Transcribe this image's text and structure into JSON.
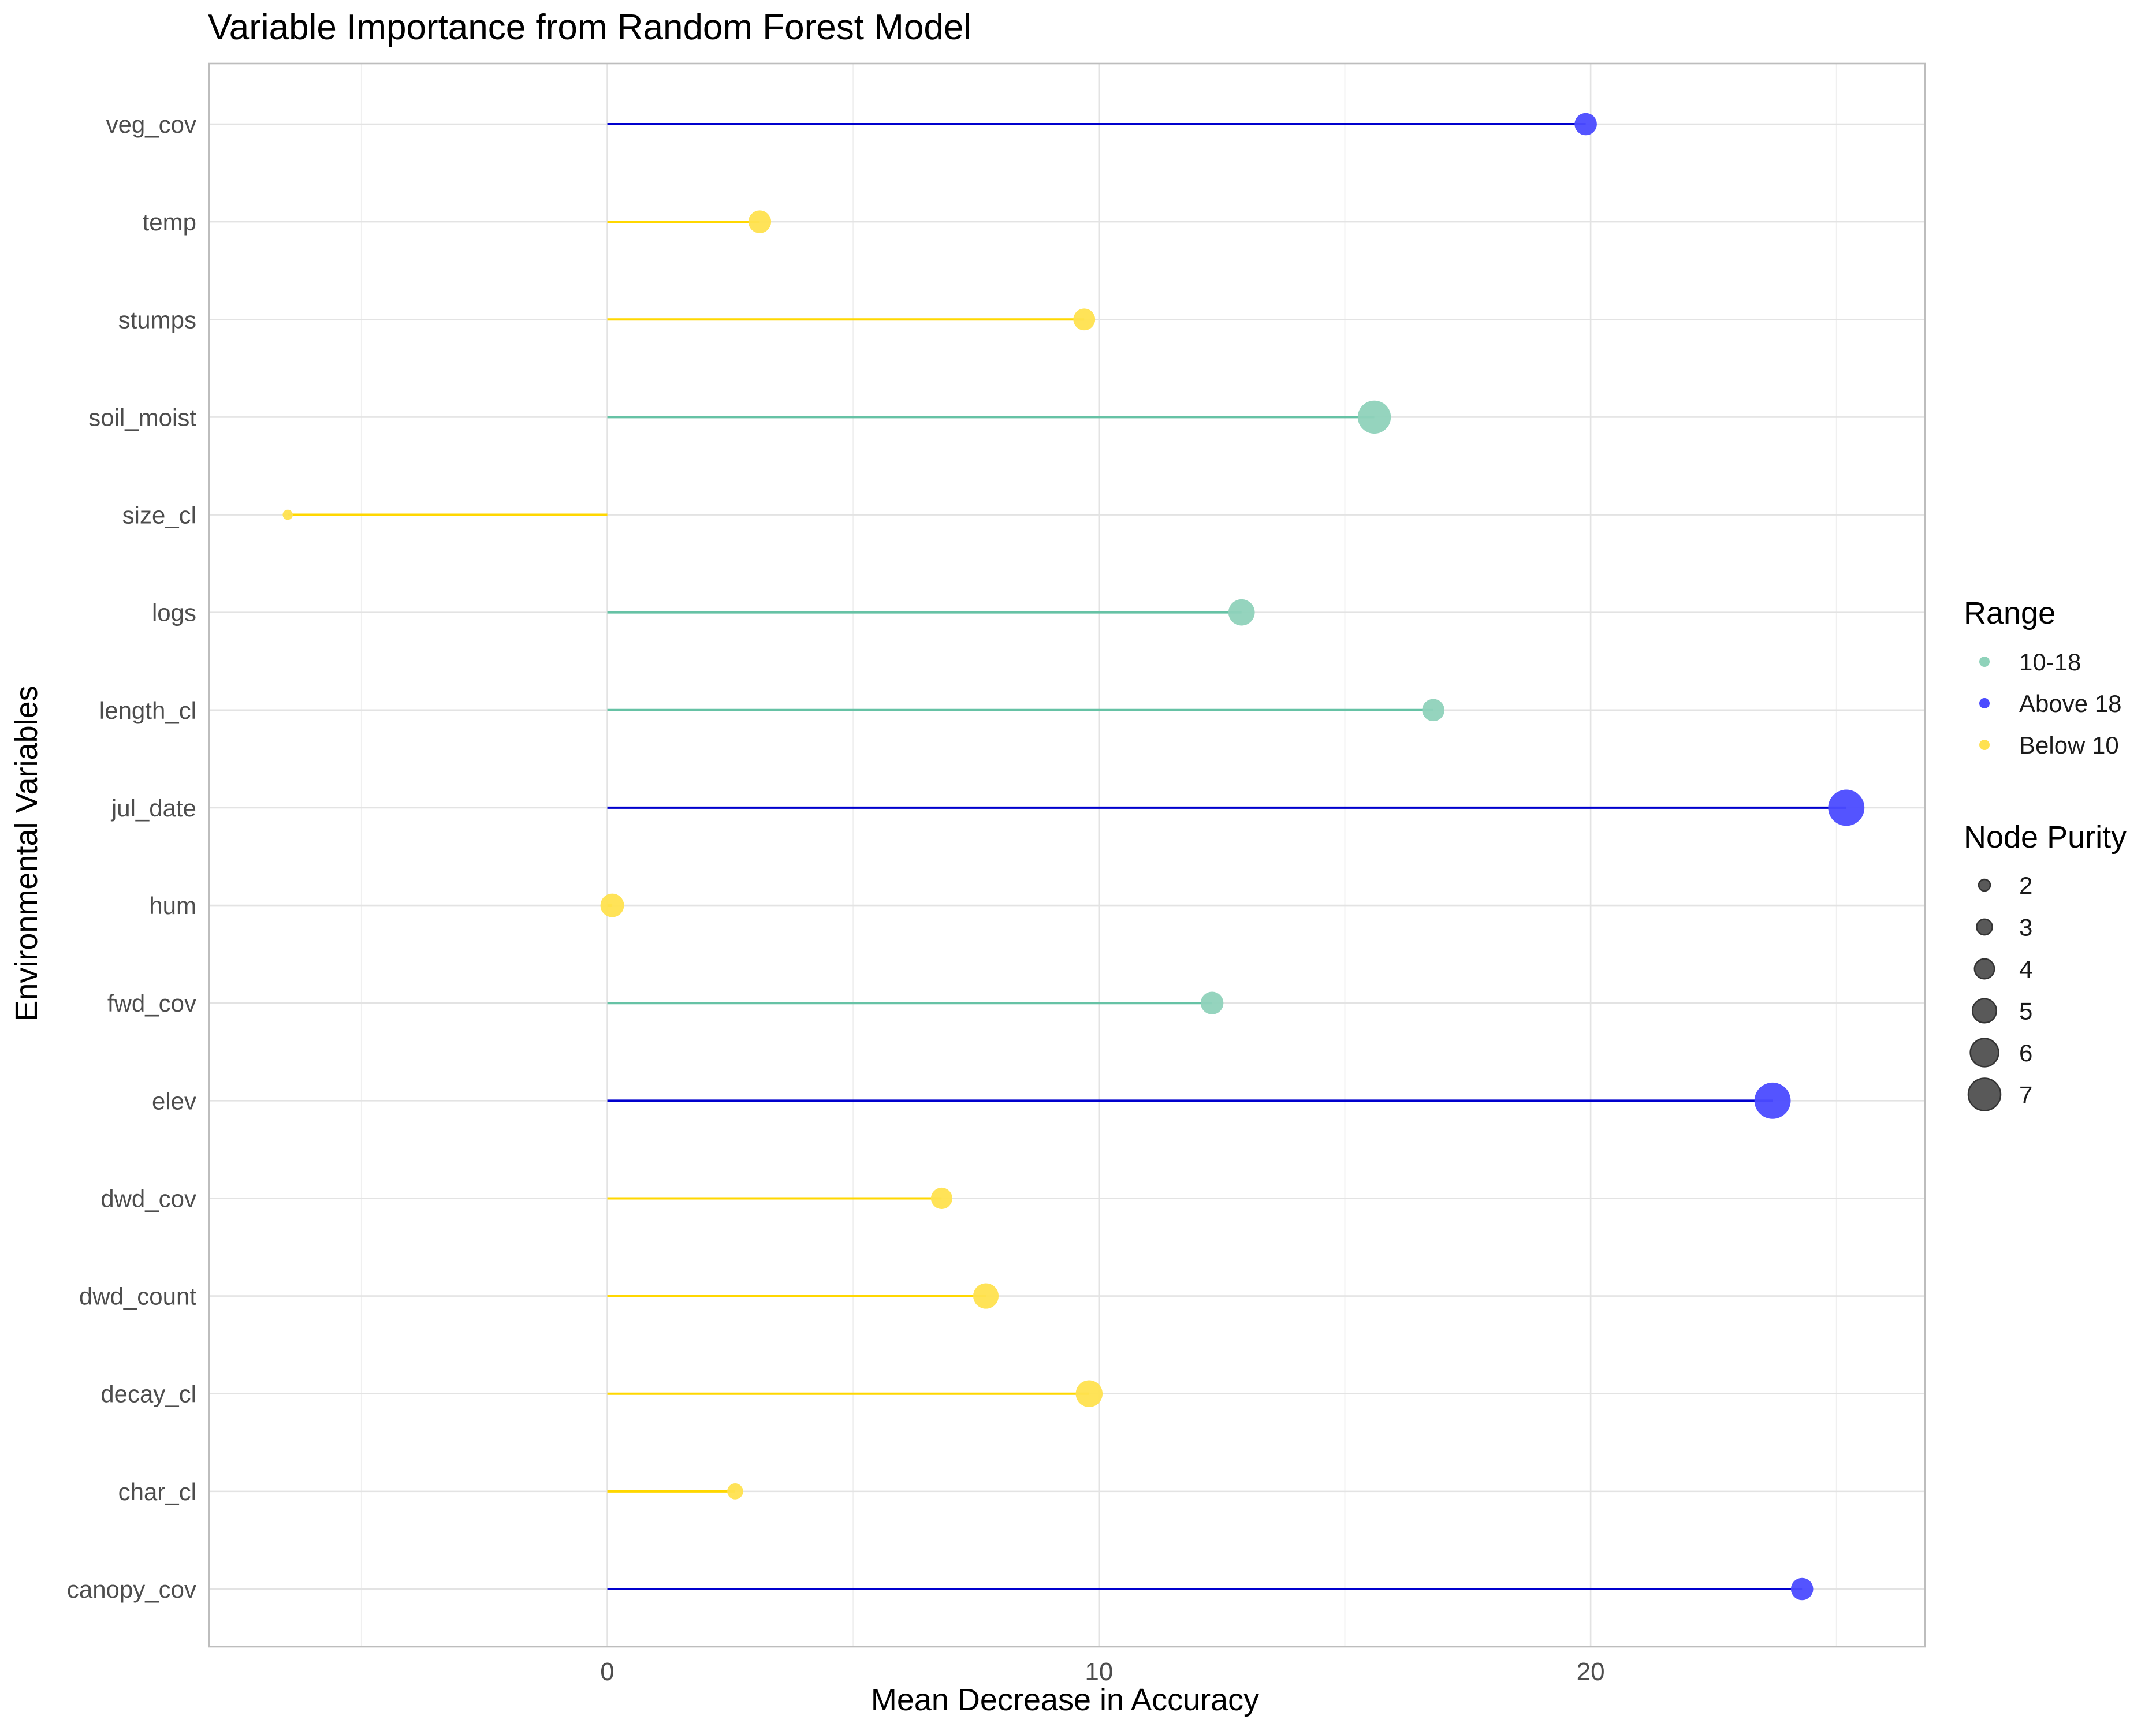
{
  "chart_data": {
    "type": "lollipop",
    "title": "Variable Importance from Random Forest Model",
    "xlabel": "Mean Decrease in Accuracy",
    "ylabel": "Environmental Variables",
    "xlim": [
      -8.1,
      26.8
    ],
    "x_ticks": [
      0,
      10,
      20
    ],
    "grid": true,
    "legend_placement": "right",
    "categories": [
      "veg_cov",
      "temp",
      "stumps",
      "soil_moist",
      "size_cl",
      "logs",
      "length_cl",
      "jul_date",
      "hum",
      "fwd_cov",
      "elev",
      "dwd_cov",
      "dwd_count",
      "decay_cl",
      "char_cl",
      "canopy_cov"
    ],
    "points": [
      {
        "variable": "veg_cov",
        "accuracy": 19.9,
        "node_purity": 3.9,
        "range": "Above 18"
      },
      {
        "variable": "temp",
        "accuracy": 3.1,
        "node_purity": 4.0,
        "range": "Below 10"
      },
      {
        "variable": "stumps",
        "accuracy": 9.7,
        "node_purity": 3.8,
        "range": "Below 10"
      },
      {
        "variable": "soil_moist",
        "accuracy": 15.6,
        "node_purity": 6.3,
        "range": "10-18"
      },
      {
        "variable": "size_cl",
        "accuracy": -6.5,
        "node_purity": 1.2,
        "range": "Below 10"
      },
      {
        "variable": "logs",
        "accuracy": 12.9,
        "node_purity": 4.8,
        "range": "10-18"
      },
      {
        "variable": "length_cl",
        "accuracy": 16.8,
        "node_purity": 3.9,
        "range": "10-18"
      },
      {
        "variable": "jul_date",
        "accuracy": 25.2,
        "node_purity": 7.0,
        "range": "Above 18"
      },
      {
        "variable": "hum",
        "accuracy": 0.1,
        "node_purity": 4.2,
        "range": "Below 10"
      },
      {
        "variable": "fwd_cov",
        "accuracy": 12.3,
        "node_purity": 4.0,
        "range": "10-18"
      },
      {
        "variable": "elev",
        "accuracy": 23.7,
        "node_purity": 7.0,
        "range": "Above 18"
      },
      {
        "variable": "dwd_cov",
        "accuracy": 6.8,
        "node_purity": 3.7,
        "range": "Below 10"
      },
      {
        "variable": "dwd_count",
        "accuracy": 7.7,
        "node_purity": 4.6,
        "range": "Below 10"
      },
      {
        "variable": "decay_cl",
        "accuracy": 9.8,
        "node_purity": 4.9,
        "range": "Below 10"
      },
      {
        "variable": "char_cl",
        "accuracy": 2.6,
        "node_purity": 2.5,
        "range": "Below 10"
      },
      {
        "variable": "canopy_cov",
        "accuracy": 24.3,
        "node_purity": 3.9,
        "range": "Above 18"
      }
    ],
    "range_legend": {
      "title": "Range",
      "entries": [
        "10-18",
        "Above 18",
        "Below 10"
      ]
    },
    "size_legend": {
      "title": "Node Purity",
      "entries": [
        2,
        3,
        4,
        5,
        6,
        7
      ]
    },
    "colors": {
      "10-18": "#66C2A5",
      "Above 18": "#0000CD",
      "Below 10": "#FFD700",
      "dot_10-18": "#8FD2BA",
      "dot_Above 18": "#4B4BFF",
      "dot_Below 10": "#FFE14F",
      "size_key": "#595959"
    }
  }
}
